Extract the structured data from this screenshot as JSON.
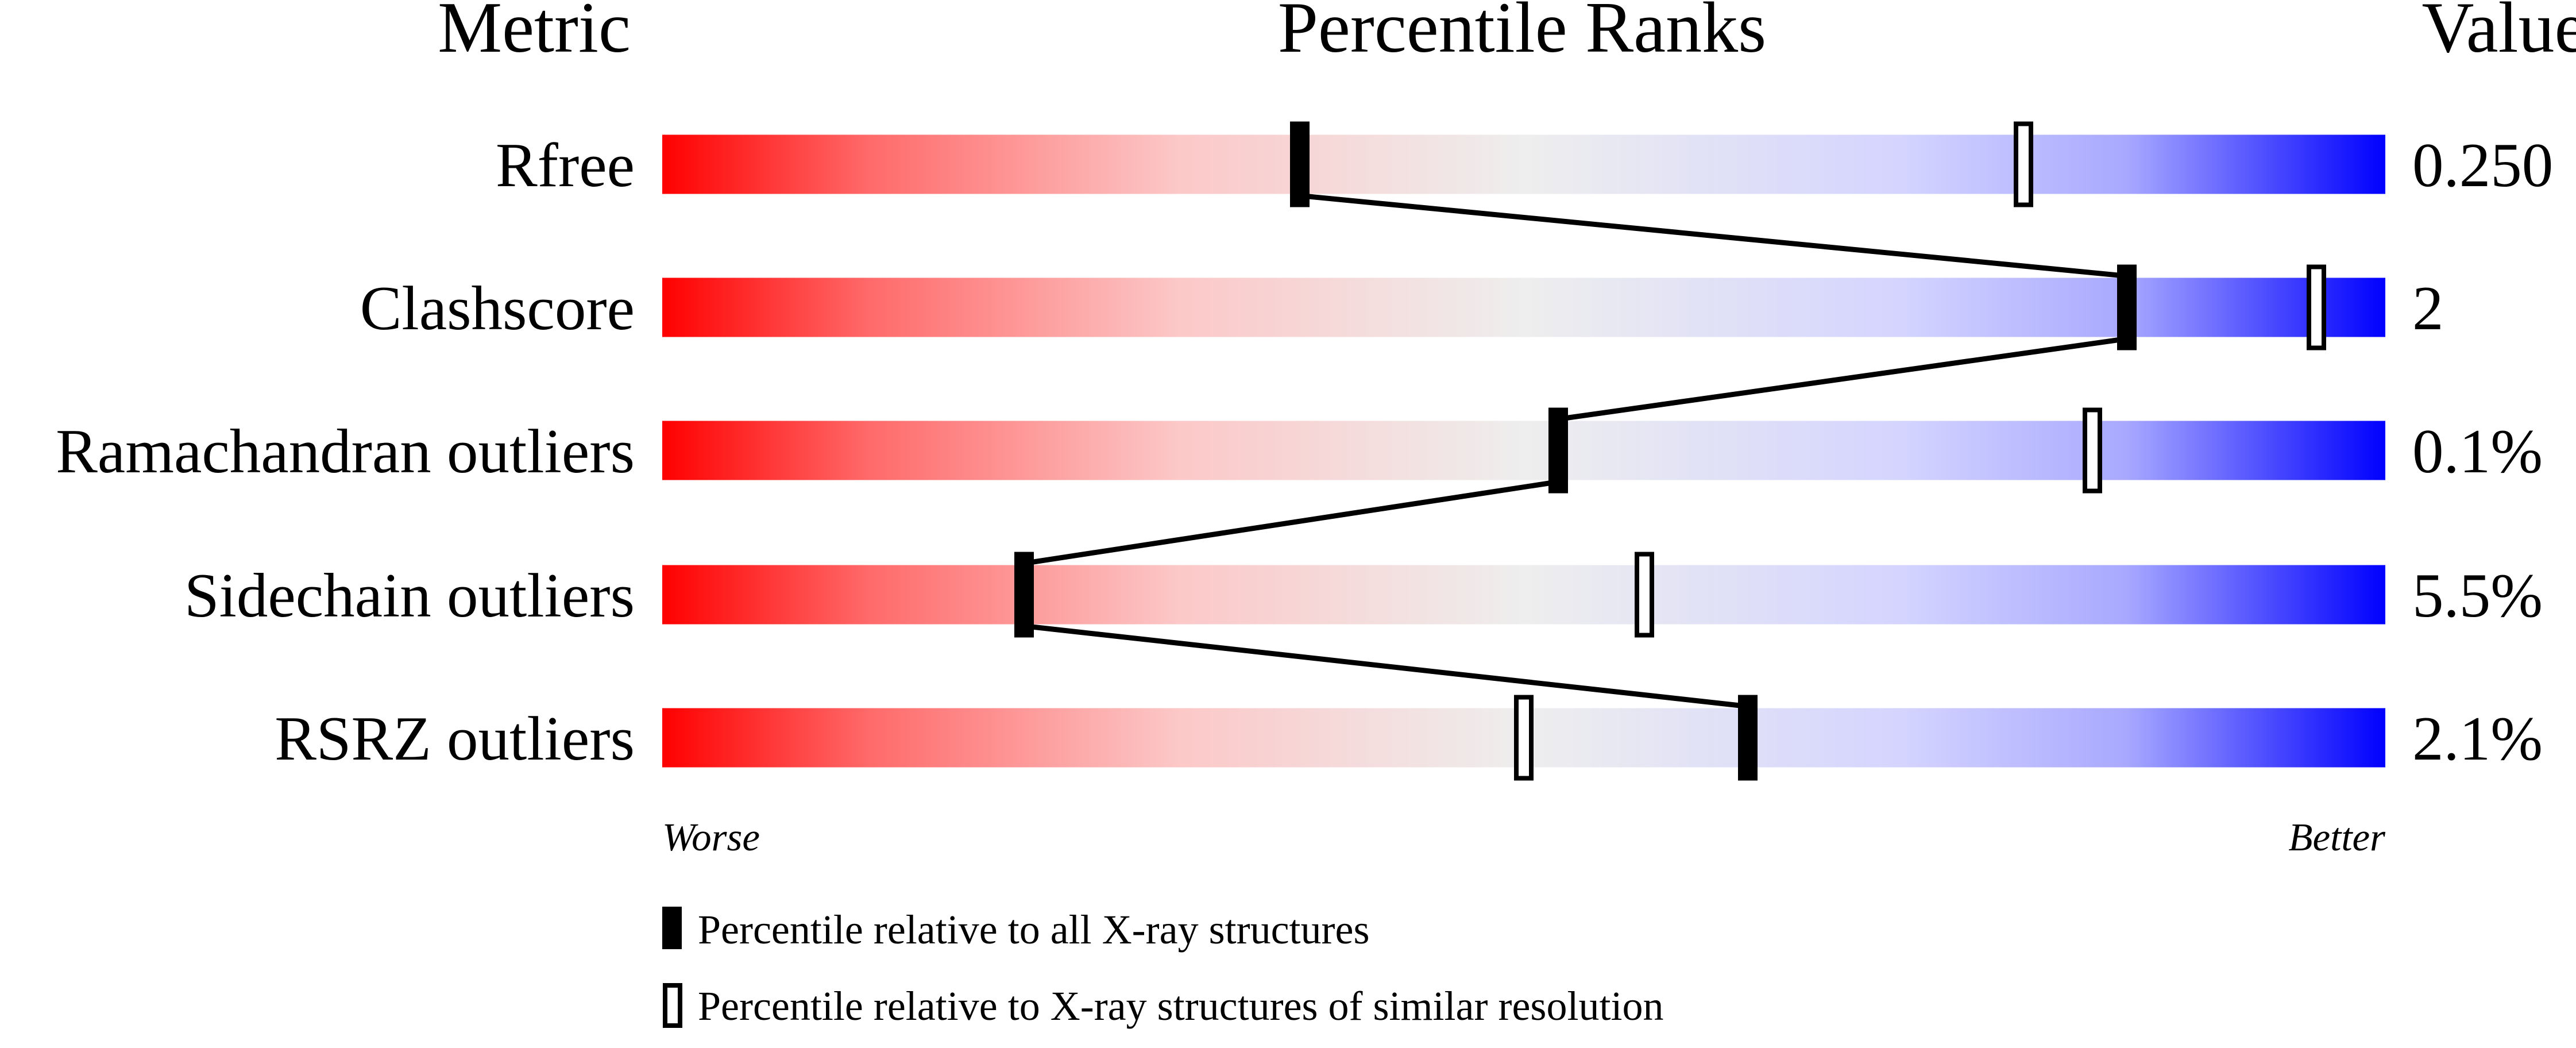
{
  "chart_data": {
    "type": "bar",
    "headers": {
      "metric": "Metric",
      "title": "Percentile Ranks",
      "value": "Value"
    },
    "xlim": [
      0,
      100
    ],
    "metrics": [
      {
        "name": "Rfree",
        "value": "0.250",
        "percentile_all": 37,
        "percentile_similar": 79
      },
      {
        "name": "Clashscore",
        "value": "2",
        "percentile_all": 85,
        "percentile_similar": 96
      },
      {
        "name": "Ramachandran outliers",
        "value": "0.1%",
        "percentile_all": 52,
        "percentile_similar": 83
      },
      {
        "name": "Sidechain outliers",
        "value": "5.5%",
        "percentile_all": 21,
        "percentile_similar": 57
      },
      {
        "name": "RSRZ outliers",
        "value": "2.1%",
        "percentile_all": 63,
        "percentile_similar": 50
      }
    ],
    "axis_labels": {
      "worse": "Worse",
      "better": "Better"
    },
    "legend": [
      {
        "marker": "filled",
        "label": "Percentile relative to all X-ray structures"
      },
      {
        "marker": "open",
        "label": "Percentile relative to X-ray structures of similar resolution"
      }
    ],
    "colors": {
      "worse": "#ff0000",
      "middle": "#eeeeee",
      "better": "#0000ff",
      "marker": "#000000"
    }
  }
}
